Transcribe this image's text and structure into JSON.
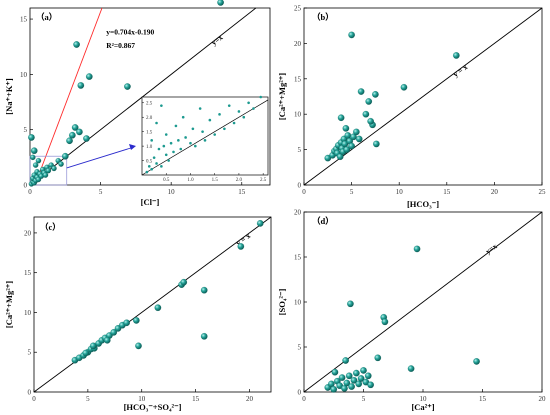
{
  "chart_data": [
    {
      "panel_label": "（a）",
      "type": "scatter",
      "xlabel": "[Cl⁻]",
      "ylabel": "[Na⁺+K⁺]",
      "xlim": [
        0,
        17
      ],
      "ylim": [
        0,
        16
      ],
      "xticks": [
        "0",
        "5",
        "10",
        "15"
      ],
      "yticks": [
        "0",
        "5",
        "10",
        "15"
      ],
      "line_label": "y=x",
      "fit_equation": "y=0.704x-0.190",
      "r2": "R²=0.867",
      "points": [
        [
          0.1,
          0.1
        ],
        [
          0.2,
          0.3
        ],
        [
          0.2,
          0.6
        ],
        [
          0.3,
          0.2
        ],
        [
          0.3,
          0.9
        ],
        [
          0.4,
          0.4
        ],
        [
          0.5,
          0.7
        ],
        [
          0.5,
          1.2
        ],
        [
          0.6,
          0.5
        ],
        [
          0.7,
          1.0
        ],
        [
          0.8,
          0.8
        ],
        [
          0.9,
          1.4
        ],
        [
          1.0,
          1.1
        ],
        [
          1.1,
          0.9
        ],
        [
          1.2,
          1.6
        ],
        [
          1.3,
          1.3
        ],
        [
          1.5,
          1.8
        ],
        [
          1.7,
          1.5
        ],
        [
          2.0,
          2.2
        ],
        [
          2.2,
          1.9
        ],
        [
          2.5,
          2.6
        ],
        [
          2.8,
          4.0
        ],
        [
          3.0,
          4.5
        ],
        [
          3.2,
          5.2
        ],
        [
          3.5,
          4.8
        ],
        [
          3.3,
          12.7
        ],
        [
          3.6,
          9.0
        ],
        [
          4.0,
          4.2
        ],
        [
          4.2,
          9.8
        ],
        [
          0.1,
          4.3
        ],
        [
          0.2,
          2.5
        ],
        [
          0.3,
          3.1
        ],
        [
          6.9,
          8.9
        ],
        [
          13.5,
          16.5
        ],
        [
          0.4,
          1.8
        ],
        [
          0.6,
          2.2
        ]
      ],
      "inset": {
        "xlim": [
          0,
          2.6
        ],
        "ylim": [
          0,
          2.7
        ],
        "xticks": [
          "0.5",
          "1.0",
          "1.5",
          "2.0",
          "2.5"
        ],
        "yticks": [
          "0.5",
          "1.0",
          "1.5",
          "2.0",
          "2.5"
        ],
        "points": [
          [
            0.1,
            0.1
          ],
          [
            0.15,
            0.3
          ],
          [
            0.2,
            0.2
          ],
          [
            0.25,
            0.6
          ],
          [
            0.3,
            0.4
          ],
          [
            0.35,
            0.9
          ],
          [
            0.4,
            0.3
          ],
          [
            0.45,
            1.0
          ],
          [
            0.5,
            0.7
          ],
          [
            0.5,
            1.4
          ],
          [
            0.55,
            0.5
          ],
          [
            0.6,
            1.1
          ],
          [
            0.65,
            0.8
          ],
          [
            0.7,
            1.7
          ],
          [
            0.75,
            1.2
          ],
          [
            0.8,
            0.9
          ],
          [
            0.85,
            2.0
          ],
          [
            0.9,
            1.3
          ],
          [
            1.0,
            1.1
          ],
          [
            1.05,
            1.6
          ],
          [
            1.1,
            1.0
          ],
          [
            1.2,
            2.3
          ],
          [
            1.25,
            1.5
          ],
          [
            1.3,
            1.2
          ],
          [
            1.4,
            1.9
          ],
          [
            1.5,
            1.4
          ],
          [
            1.6,
            2.1
          ],
          [
            1.7,
            1.6
          ],
          [
            1.8,
            2.4
          ],
          [
            1.9,
            1.8
          ],
          [
            2.0,
            2.2
          ],
          [
            2.1,
            2.0
          ],
          [
            2.2,
            2.5
          ],
          [
            2.3,
            2.3
          ],
          [
            2.45,
            2.7
          ],
          [
            0.2,
            1.2
          ],
          [
            0.3,
            1.8
          ],
          [
            0.4,
            2.4
          ]
        ]
      }
    },
    {
      "panel_label": "（b）",
      "type": "scatter",
      "xlabel": "[HCO₃⁻]",
      "ylabel": "[Ca²⁺+Mg²⁺]",
      "xlim": [
        0,
        25
      ],
      "ylim": [
        0,
        25
      ],
      "xticks": [
        "0",
        "5",
        "10",
        "15",
        "20",
        "25"
      ],
      "yticks": [
        "0",
        "5",
        "10",
        "15",
        "20",
        "25"
      ],
      "line_label": "y = x",
      "points": [
        [
          2.5,
          3.8
        ],
        [
          3.0,
          4.2
        ],
        [
          3.2,
          4.8
        ],
        [
          3.4,
          5.1
        ],
        [
          3.5,
          4.5
        ],
        [
          3.6,
          5.6
        ],
        [
          3.8,
          4.0
        ],
        [
          3.9,
          6.0
        ],
        [
          4.0,
          5.2
        ],
        [
          4.1,
          4.7
        ],
        [
          4.2,
          6.5
        ],
        [
          4.3,
          5.8
        ],
        [
          4.5,
          5.0
        ],
        [
          4.6,
          7.0
        ],
        [
          4.8,
          6.2
        ],
        [
          5.0,
          5.5
        ],
        [
          5.2,
          6.8
        ],
        [
          5.5,
          7.5
        ],
        [
          5.8,
          6.5
        ],
        [
          6.0,
          13.2
        ],
        [
          5.0,
          21.2
        ],
        [
          7.5,
          12.8
        ],
        [
          7.2,
          8.5
        ],
        [
          6.5,
          10.0
        ],
        [
          6.8,
          11.8
        ],
        [
          7.0,
          9.0
        ],
        [
          7.6,
          5.8
        ],
        [
          4.4,
          8.0
        ],
        [
          3.9,
          9.5
        ],
        [
          10.5,
          13.8
        ],
        [
          16.0,
          18.3
        ]
      ]
    },
    {
      "panel_label": "（c）",
      "type": "scatter",
      "xlabel": "[HCO₃⁻+SO₄²⁻]",
      "ylabel": "[Ca²⁺+Mg²⁺]",
      "xlim": [
        0,
        22
      ],
      "ylim": [
        0,
        22
      ],
      "xticks": [
        "0",
        "5",
        "10",
        "15",
        "20"
      ],
      "yticks": [
        "0",
        "5",
        "10",
        "15",
        "20"
      ],
      "line_label": "y = x",
      "points": [
        [
          3.8,
          4.0
        ],
        [
          4.2,
          4.3
        ],
        [
          4.6,
          4.6
        ],
        [
          5.0,
          5.0
        ],
        [
          5.3,
          5.4
        ],
        [
          5.6,
          5.5
        ],
        [
          6.0,
          6.1
        ],
        [
          6.3,
          6.5
        ],
        [
          6.6,
          6.8
        ],
        [
          7.0,
          7.1
        ],
        [
          7.4,
          7.5
        ],
        [
          7.8,
          8.0
        ],
        [
          8.2,
          8.4
        ],
        [
          8.6,
          8.7
        ],
        [
          9.5,
          9.0
        ],
        [
          9.7,
          5.8
        ],
        [
          11.5,
          10.6
        ],
        [
          13.7,
          13.5
        ],
        [
          13.9,
          13.8
        ],
        [
          15.8,
          12.8
        ],
        [
          15.8,
          7.0
        ],
        [
          19.2,
          18.3
        ],
        [
          21.0,
          21.2
        ],
        [
          5.5,
          5.8
        ],
        [
          4.8,
          4.9
        ],
        [
          6.8,
          6.5
        ]
      ]
    },
    {
      "panel_label": "（d）",
      "type": "scatter",
      "xlabel": "[Ca²⁺]",
      "ylabel": "[SO₄²⁻]",
      "xlim": [
        0,
        20
      ],
      "ylim": [
        0,
        20
      ],
      "xticks": [
        "0",
        "5",
        "10",
        "15",
        "20"
      ],
      "yticks": [
        "0",
        "5",
        "10",
        "15",
        "20"
      ],
      "line_label": "y=x",
      "points": [
        [
          2.0,
          0.5
        ],
        [
          2.3,
          0.9
        ],
        [
          2.5,
          0.3
        ],
        [
          2.8,
          1.2
        ],
        [
          3.0,
          0.7
        ],
        [
          3.2,
          1.6
        ],
        [
          3.4,
          0.4
        ],
        [
          3.6,
          1.0
        ],
        [
          3.8,
          1.8
        ],
        [
          4.0,
          0.6
        ],
        [
          4.2,
          1.3
        ],
        [
          4.4,
          2.1
        ],
        [
          4.6,
          0.9
        ],
        [
          4.8,
          1.5
        ],
        [
          5.0,
          2.4
        ],
        [
          5.2,
          1.1
        ],
        [
          5.4,
          1.8
        ],
        [
          5.6,
          0.8
        ],
        [
          3.9,
          9.8
        ],
        [
          6.7,
          8.3
        ],
        [
          6.8,
          7.8
        ],
        [
          6.2,
          3.8
        ],
        [
          9.0,
          2.6
        ],
        [
          9.5,
          15.9
        ],
        [
          14.5,
          3.4
        ],
        [
          3.5,
          3.5
        ],
        [
          2.6,
          2.2
        ]
      ]
    }
  ]
}
